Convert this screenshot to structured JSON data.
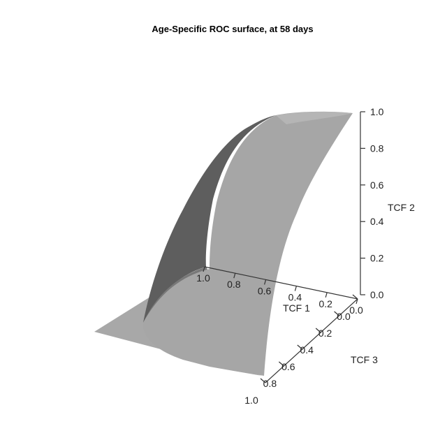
{
  "chart_data": {
    "type": "surface",
    "title": "Age-Specific ROC surface, at 58 days",
    "axes": {
      "x": {
        "label": "TCF 1",
        "ticks": [
          1.0,
          0.8,
          0.6,
          0.4,
          0.2,
          0.0
        ],
        "tick_labels": [
          "1.0",
          "0.8",
          "0.6",
          "0.4",
          "0.2",
          "0.0"
        ],
        "range": [
          0,
          1
        ]
      },
      "y": {
        "label": "TCF 3",
        "ticks": [
          0.0,
          0.2,
          0.4,
          0.6,
          0.8,
          1.0
        ],
        "tick_labels": [
          "0.0",
          "0.2",
          "0.4",
          "0.6",
          "0.8",
          "1.0"
        ],
        "range": [
          0,
          1
        ]
      },
      "z": {
        "label": "TCF 2",
        "ticks": [
          0.0,
          0.2,
          0.4,
          0.6,
          0.8,
          1.0
        ],
        "tick_labels": [
          "0.0",
          "0.2",
          "0.4",
          "0.6",
          "0.8",
          "1.0"
        ],
        "range": [
          0,
          1
        ]
      }
    },
    "surface_color": "#a6a6a6",
    "surface_shadow_color": "#5e5e5e",
    "background": "#ffffff"
  }
}
